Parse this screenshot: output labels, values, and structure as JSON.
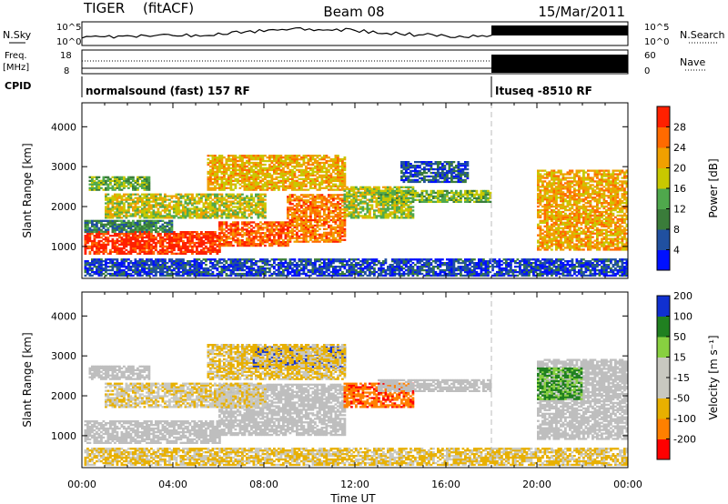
{
  "header": {
    "radar": "TIGER",
    "mode": "(fitACF)",
    "beam": "Beam 08",
    "date": "15/Mar/2011"
  },
  "status": {
    "nsky_label": "N.Sky",
    "nsearch_label": "N.Search",
    "noise_ticks": [
      "10^5",
      "10^0"
    ],
    "freq_label": "Freq.",
    "freq_unit": "[MHz]",
    "freq_ticks": [
      "18",
      "8"
    ],
    "nave_label": "Nave",
    "nave_ticks": [
      "60",
      "0"
    ],
    "cpid_label": "CPID",
    "cpid_1": "normalsound (fast) 157 RF",
    "cpid_2": "Ituseq -8510 RF"
  },
  "colors": {
    "power": [
      "#0010ff",
      "#2050a0",
      "#3a7c3a",
      "#4fa84c",
      "#c8c800",
      "#f0a000",
      "#ff6a00",
      "#ff2000"
    ],
    "velocity": [
      "#ff0000",
      "#ff8000",
      "#e8b000",
      "#c8c8c0",
      "#c8c8c0",
      "#88d040",
      "#208020",
      "#1030d0"
    ],
    "ground_scatter": "#bebebe"
  },
  "chart_data": [
    {
      "type": "heatmap",
      "name": "power",
      "ylabel": "Slant Range [km]",
      "yticks": [
        "1000",
        "2000",
        "3000",
        "4000"
      ],
      "ylim": [
        200,
        4600
      ],
      "xlim": [
        "00:00",
        "24:00"
      ],
      "colorbar_label": "Power [dB]",
      "colorbar_ticks": [
        "4",
        "8",
        "12",
        "16",
        "20",
        "24",
        "28"
      ],
      "colorbar_range": [
        0,
        32
      ],
      "bands": [
        {
          "t0": 0.1,
          "t1": 6.0,
          "r0": 800,
          "r1": 1350,
          "v": 30
        },
        {
          "t0": 6.0,
          "t1": 9.0,
          "r0": 1000,
          "r1": 1600,
          "v": 27
        },
        {
          "t0": 9.0,
          "t1": 11.5,
          "r0": 1100,
          "r1": 2300,
          "v": 25
        },
        {
          "t0": 0.1,
          "t1": 4.0,
          "r0": 1350,
          "r1": 1650,
          "v": 10
        },
        {
          "t0": 1.0,
          "t1": 8.0,
          "r0": 1700,
          "r1": 2300,
          "v": 18
        },
        {
          "t0": 0.3,
          "t1": 3.0,
          "r0": 2400,
          "r1": 2750,
          "v": 14
        },
        {
          "t0": 5.5,
          "t1": 11.5,
          "r0": 2400,
          "r1": 3300,
          "v": 21
        },
        {
          "t0": 11.5,
          "t1": 14.5,
          "r0": 1700,
          "r1": 2500,
          "v": 17
        },
        {
          "t0": 13.0,
          "t1": 18.0,
          "r0": 2100,
          "r1": 2400,
          "v": 15
        },
        {
          "t0": 14.0,
          "t1": 17.0,
          "r0": 2600,
          "r1": 3100,
          "v": 6
        },
        {
          "t0": 20.0,
          "t1": 24.0,
          "r0": 900,
          "r1": 2900,
          "v": 22
        },
        {
          "t0": 0.1,
          "t1": 24.0,
          "r0": 250,
          "r1": 700,
          "v": 5
        }
      ]
    },
    {
      "type": "heatmap",
      "name": "velocity",
      "xlabel": "Time UT",
      "ylabel": "Slant Range [km]",
      "yticks": [
        "1000",
        "2000",
        "3000",
        "4000"
      ],
      "ylim": [
        200,
        4600
      ],
      "xticks": [
        "00:00",
        "04:00",
        "08:00",
        "12:00",
        "16:00",
        "20:00",
        "00:00"
      ],
      "colorbar_label": "Velocity [m s⁻¹]",
      "colorbar_ticks": [
        "-200",
        "-100",
        "-50",
        "-15",
        "15",
        "50",
        "100",
        "200"
      ],
      "colorbar_range": [
        -250,
        250
      ],
      "bands": [
        {
          "t0": 0.1,
          "t1": 6.0,
          "r0": 800,
          "r1": 1350,
          "v": 0,
          "g": true
        },
        {
          "t0": 6.0,
          "t1": 11.5,
          "r0": 1000,
          "r1": 2300,
          "v": 0,
          "g": true
        },
        {
          "t0": 0.3,
          "t1": 3.0,
          "r0": 2400,
          "r1": 2750,
          "v": 0,
          "g": true
        },
        {
          "t0": 1.0,
          "t1": 8.0,
          "r0": 1700,
          "r1": 2300,
          "v": -40
        },
        {
          "t0": 7.5,
          "t1": 11.5,
          "r0": 2700,
          "r1": 3200,
          "v": 210
        },
        {
          "t0": 5.5,
          "t1": 11.5,
          "r0": 2400,
          "r1": 3300,
          "v": -60
        },
        {
          "t0": 11.5,
          "t1": 14.5,
          "r0": 1700,
          "r1": 2300,
          "v": -180
        },
        {
          "t0": 13.0,
          "t1": 18.0,
          "r0": 2100,
          "r1": 2400,
          "v": 0,
          "g": true
        },
        {
          "t0": 20.0,
          "t1": 24.0,
          "r0": 900,
          "r1": 2900,
          "v": 0,
          "g": true
        },
        {
          "t0": 20.0,
          "t1": 22.0,
          "r0": 1900,
          "r1": 2700,
          "v": 60
        },
        {
          "t0": 0.1,
          "t1": 24.0,
          "r0": 250,
          "r1": 700,
          "v": -60
        }
      ]
    }
  ]
}
